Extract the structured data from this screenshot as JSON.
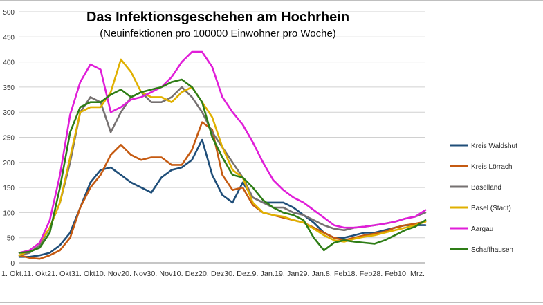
{
  "chart_data": {
    "type": "line",
    "title": "Das Infektionsgeschehen am Hochrhein",
    "subtitle": "(Neuinfektionen pro 100000 Einwohner pro Woche)",
    "xlabel": "",
    "ylabel": "",
    "ylim": [
      0,
      500
    ],
    "yticks": [
      0,
      50,
      100,
      150,
      200,
      250,
      300,
      350,
      400,
      450,
      500
    ],
    "xticks": [
      "1. Okt.",
      "11. Okt",
      "21. Okt",
      "31. Okt",
      "10. Nov",
      "20. Nov",
      "30. Nov",
      "10. Dez",
      "20. Dez",
      "30. Dez.",
      "9. Jan.",
      "19. Jan",
      "29. Jan.",
      "8. Feb",
      "18. Feb",
      "28. Feb",
      "10. Mrz."
    ],
    "x": [
      0,
      4,
      8,
      12,
      16,
      20,
      24,
      28,
      32,
      36,
      40,
      44,
      48,
      52,
      56,
      60,
      64,
      68,
      72,
      76,
      80,
      84,
      88,
      92,
      96,
      100,
      104,
      108,
      112,
      116,
      120,
      124,
      128,
      132,
      136,
      140,
      144,
      148,
      152,
      156,
      160
    ],
    "grid": true,
    "legend_position": "right",
    "series": [
      {
        "name": "Kreis Waldshut",
        "color": "#1f4e79",
        "values": [
          12,
          12,
          15,
          20,
          35,
          60,
          110,
          160,
          185,
          190,
          175,
          160,
          150,
          140,
          170,
          185,
          190,
          205,
          245,
          175,
          135,
          120,
          160,
          130,
          120,
          120,
          120,
          110,
          95,
          80,
          60,
          50,
          50,
          55,
          60,
          60,
          65,
          70,
          75,
          75,
          75
        ]
      },
      {
        "name": "Kreis Lörrach",
        "color": "#c55a11",
        "values": [
          15,
          10,
          8,
          15,
          25,
          50,
          110,
          150,
          175,
          215,
          235,
          215,
          205,
          210,
          210,
          195,
          195,
          225,
          280,
          265,
          175,
          145,
          150,
          115,
          100,
          95,
          90,
          85,
          80,
          70,
          60,
          50,
          45,
          50,
          55,
          58,
          62,
          70,
          75,
          78,
          82
        ]
      },
      {
        "name": "Baselland",
        "color": "#767171",
        "values": [
          15,
          20,
          35,
          70,
          120,
          200,
          300,
          330,
          320,
          260,
          300,
          330,
          340,
          320,
          320,
          330,
          350,
          330,
          300,
          260,
          230,
          200,
          170,
          130,
          120,
          110,
          110,
          100,
          95,
          85,
          75,
          68,
          65,
          70,
          72,
          75,
          78,
          82,
          88,
          92,
          100
        ]
      },
      {
        "name": "Basel (Stadt)",
        "color": "#e0b000",
        "values": [
          15,
          25,
          40,
          70,
          120,
          210,
          300,
          310,
          310,
          340,
          405,
          380,
          340,
          330,
          330,
          320,
          340,
          350,
          320,
          290,
          230,
          185,
          170,
          120,
          100,
          95,
          92,
          85,
          80,
          68,
          55,
          45,
          42,
          48,
          52,
          55,
          60,
          65,
          70,
          75,
          82
        ]
      },
      {
        "name": "Aargau",
        "color": "#e01ed8",
        "values": [
          20,
          25,
          40,
          85,
          175,
          295,
          360,
          395,
          385,
          300,
          310,
          325,
          330,
          340,
          350,
          370,
          400,
          420,
          420,
          390,
          330,
          300,
          275,
          240,
          200,
          165,
          145,
          130,
          120,
          105,
          90,
          75,
          70,
          70,
          72,
          75,
          78,
          82,
          88,
          92,
          105
        ]
      },
      {
        "name": "Schaffhausen",
        "color": "#2e7d16",
        "values": [
          20,
          22,
          30,
          60,
          150,
          260,
          310,
          320,
          320,
          335,
          345,
          330,
          340,
          345,
          350,
          360,
          365,
          350,
          320,
          250,
          210,
          175,
          170,
          150,
          125,
          110,
          100,
          95,
          85,
          50,
          25,
          40,
          45,
          42,
          40,
          38,
          45,
          55,
          65,
          72,
          85
        ]
      }
    ]
  }
}
